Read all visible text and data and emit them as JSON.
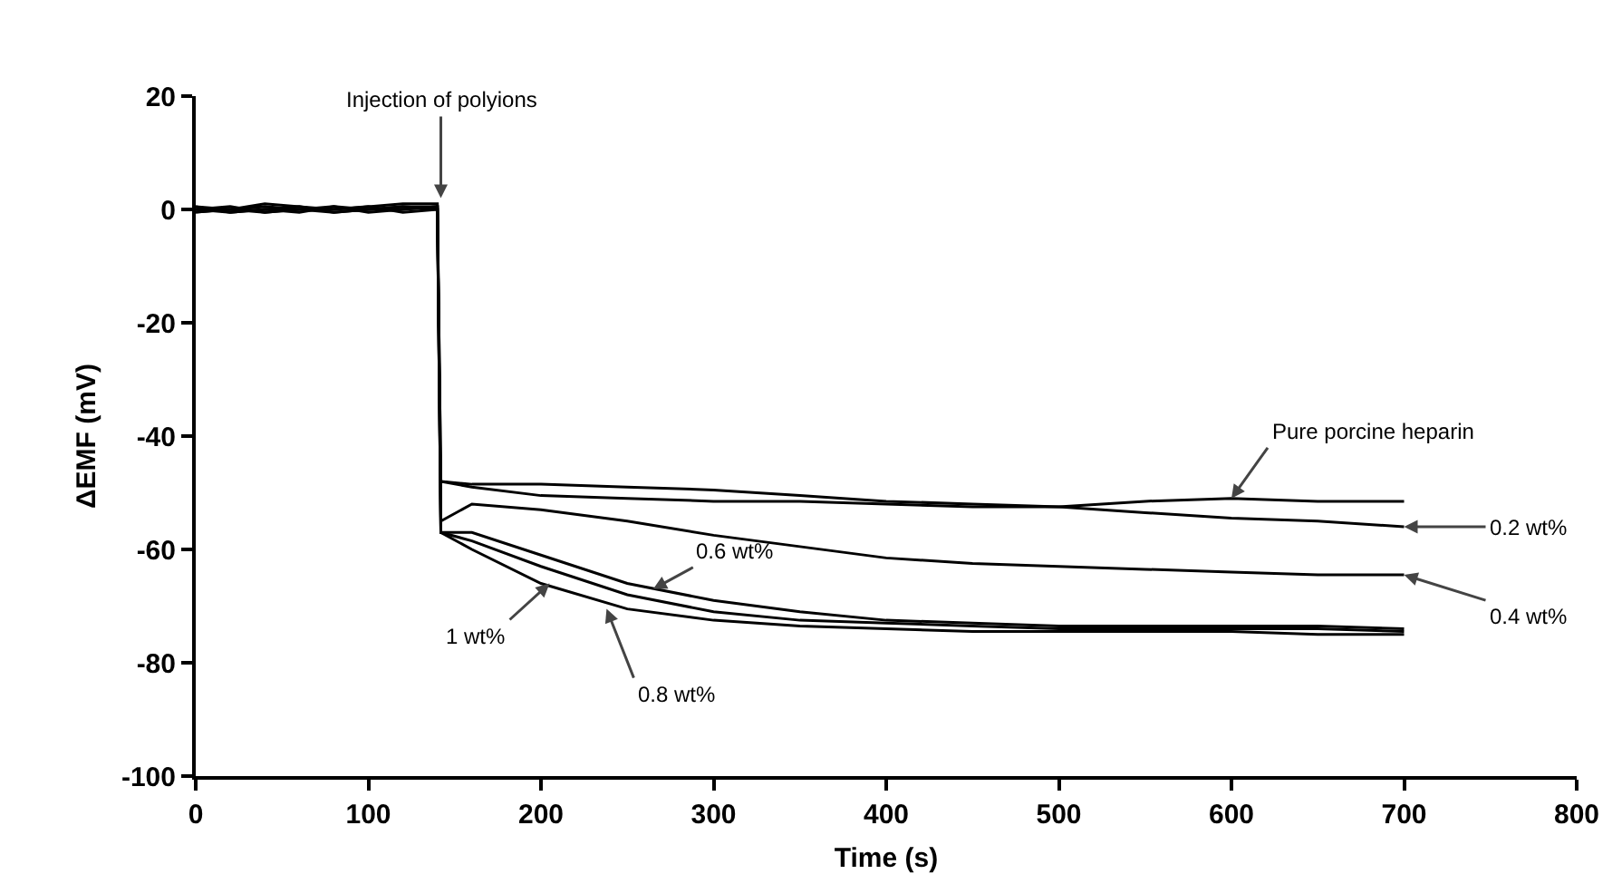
{
  "chart_data": {
    "type": "line",
    "xlabel": "Time (s)",
    "ylabel": "ΔEMF (mV)",
    "xlim": [
      0,
      800
    ],
    "xticks": [
      0,
      100,
      200,
      300,
      400,
      500,
      600,
      700,
      800
    ],
    "ylim": [
      -100,
      20
    ],
    "yticks": [
      -100,
      -80,
      -60,
      -40,
      -20,
      0,
      20
    ],
    "grid": false,
    "marker": "none",
    "line_style": "solid",
    "x": [
      0,
      20,
      40,
      60,
      80,
      100,
      120,
      140,
      142,
      160,
      200,
      250,
      300,
      350,
      400,
      450,
      500,
      550,
      600,
      650,
      700
    ],
    "series": [
      {
        "color": "#000000",
        "values": [
          0.5,
          0,
          1,
          0.5,
          0,
          0.5,
          1,
          1,
          -48,
          -48.5,
          -48.5,
          -49,
          -49.5,
          -50.5,
          -51.5,
          -52,
          -52.5,
          -51.5,
          -51,
          -51.5,
          -51.5
        ]
      },
      {
        "color": "#000000",
        "values": [
          0,
          -0.5,
          0,
          0.5,
          -0.5,
          0,
          0.5,
          0.5,
          -48,
          -49,
          -50.5,
          -51,
          -51.5,
          -51.5,
          -52,
          -52.5,
          -52.5,
          -53.5,
          -54.5,
          -55,
          -56
        ]
      },
      {
        "color": "#000000",
        "values": [
          -0.5,
          0,
          -0.5,
          0,
          0.5,
          -0.5,
          0,
          0.5,
          -55,
          -52,
          -53,
          -55,
          -57.5,
          -59.5,
          -61.5,
          -62.5,
          -63,
          -63.5,
          -64,
          -64.5,
          -64.5
        ]
      },
      {
        "color": "#000000",
        "values": [
          0,
          0.5,
          -0.5,
          0,
          0,
          0.5,
          -0.5,
          0,
          -57,
          -57,
          -61,
          -66,
          -69,
          -71,
          -72.5,
          -73,
          -73.5,
          -73.5,
          -73.5,
          -73.5,
          -74
        ]
      },
      {
        "color": "#000000",
        "values": [
          0.5,
          -0.5,
          0,
          -0.5,
          0.5,
          0,
          0,
          0.5,
          -57,
          -58.5,
          -63,
          -68,
          -71,
          -72.5,
          -73,
          -73.5,
          -74,
          -74,
          -74,
          -74,
          -74.5
        ]
      },
      {
        "color": "#000000",
        "values": [
          -0.5,
          0,
          0.5,
          0,
          -0.5,
          0,
          0.5,
          0,
          -57,
          -60,
          -66,
          -70.5,
          -72.5,
          -73.5,
          -74,
          -74.5,
          -74.5,
          -74.5,
          -74.5,
          -75,
          -75
        ]
      }
    ],
    "annotations": [
      {
        "text": "Injection of polyions",
        "x": 142,
        "y": 2
      },
      {
        "text": "Pure porcine heparin",
        "x": 600,
        "y": -51
      },
      {
        "text": "0.2 wt%",
        "x": 700,
        "y": -56
      },
      {
        "text": "0.4 wt%",
        "x": 700,
        "y": -64.5
      },
      {
        "text": "0.6 wt%",
        "x": 265,
        "y": -67
      },
      {
        "text": "1 wt%",
        "x": 205,
        "y": -66
      },
      {
        "text": "0.8 wt%",
        "x": 238,
        "y": -70.5
      }
    ]
  }
}
